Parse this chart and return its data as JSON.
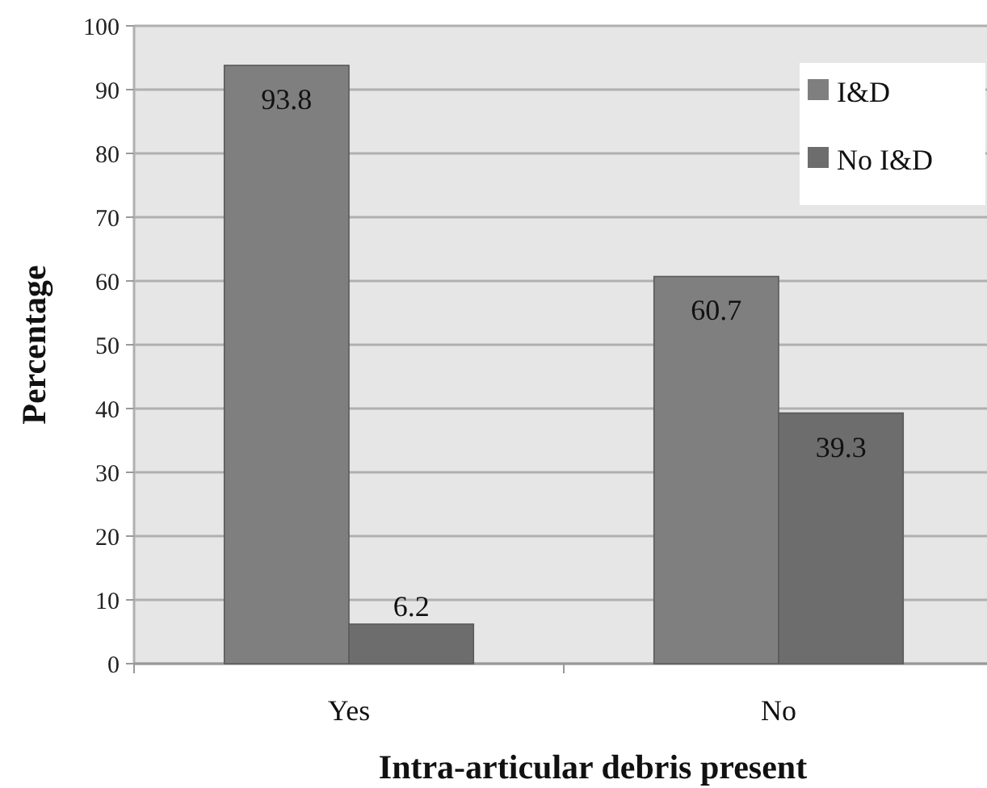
{
  "chart_data": {
    "type": "bar",
    "xlabel": "Intra-articular debris present",
    "ylabel": "Percentage",
    "categories": [
      "Yes",
      "No"
    ],
    "series": [
      {
        "name": "I&D",
        "color": "#7f7f7f",
        "values": [
          93.8,
          60.7
        ]
      },
      {
        "name": "No I&D",
        "color": "#6d6d6d",
        "values": [
          6.2,
          39.3
        ]
      }
    ],
    "ylim": [
      0,
      100
    ],
    "yticks": [
      0,
      10,
      20,
      30,
      40,
      50,
      60,
      70,
      80,
      90,
      100
    ],
    "grid": "y",
    "legend": "top right",
    "data_labels": true
  }
}
